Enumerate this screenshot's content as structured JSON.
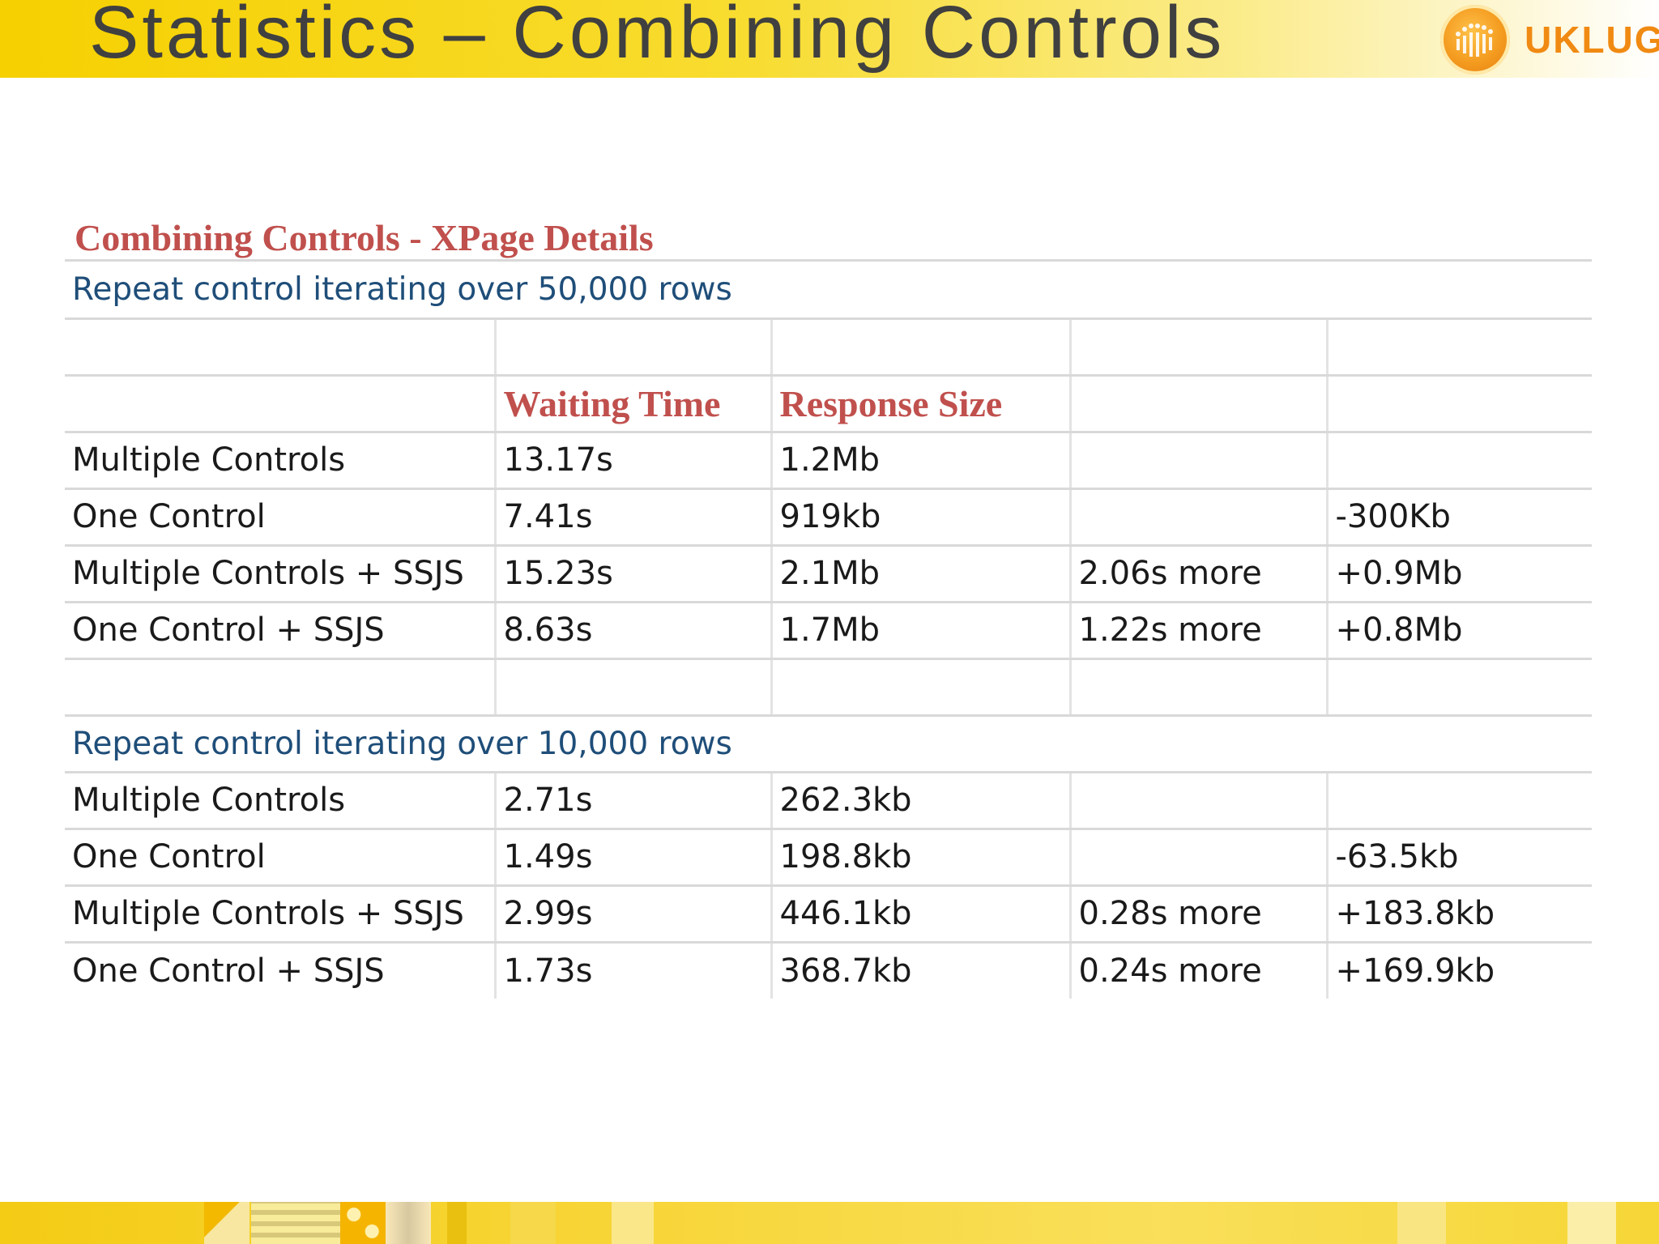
{
  "header": {
    "title": "Statistics – Combining Controls",
    "logo_text": "UKLUG",
    "logo_icon": "uklug-logo-icon"
  },
  "section_title": "Combining Controls - XPage Details",
  "groups": [
    {
      "label": "Repeat control iterating over 50,000 rows",
      "header": [
        "",
        "Waiting Time",
        "Response Size",
        "",
        ""
      ],
      "rows": [
        [
          "Multiple Controls",
          "13.17s",
          "1.2Mb",
          "",
          ""
        ],
        [
          "One Control",
          "7.41s",
          "919kb",
          "",
          "-300Kb"
        ],
        [
          "Multiple Controls + SSJS",
          "15.23s",
          "2.1Mb",
          "2.06s more",
          "+0.9Mb"
        ],
        [
          "One Control + SSJS",
          "8.63s",
          "1.7Mb",
          "1.22s more",
          "+0.8Mb"
        ]
      ]
    },
    {
      "label": "Repeat control iterating over 10,000 rows",
      "rows": [
        [
          "Multiple Controls",
          "2.71s",
          "262.3kb",
          "",
          ""
        ],
        [
          "One Control",
          "1.49s",
          "198.8kb",
          "",
          "-63.5kb"
        ],
        [
          "Multiple Controls + SSJS",
          "2.99s",
          "446.1kb",
          "0.28s more",
          "+183.8kb"
        ],
        [
          "One Control + SSJS",
          "1.73s",
          "368.7kb",
          "0.24s more",
          "+169.9kb"
        ]
      ]
    }
  ],
  "colors": {
    "accent_red": "#c0504d",
    "header_yellow": "#f6d000",
    "label_blue": "#1f4e79",
    "title_gray": "#404040",
    "logo_orange": "#f08a12"
  }
}
